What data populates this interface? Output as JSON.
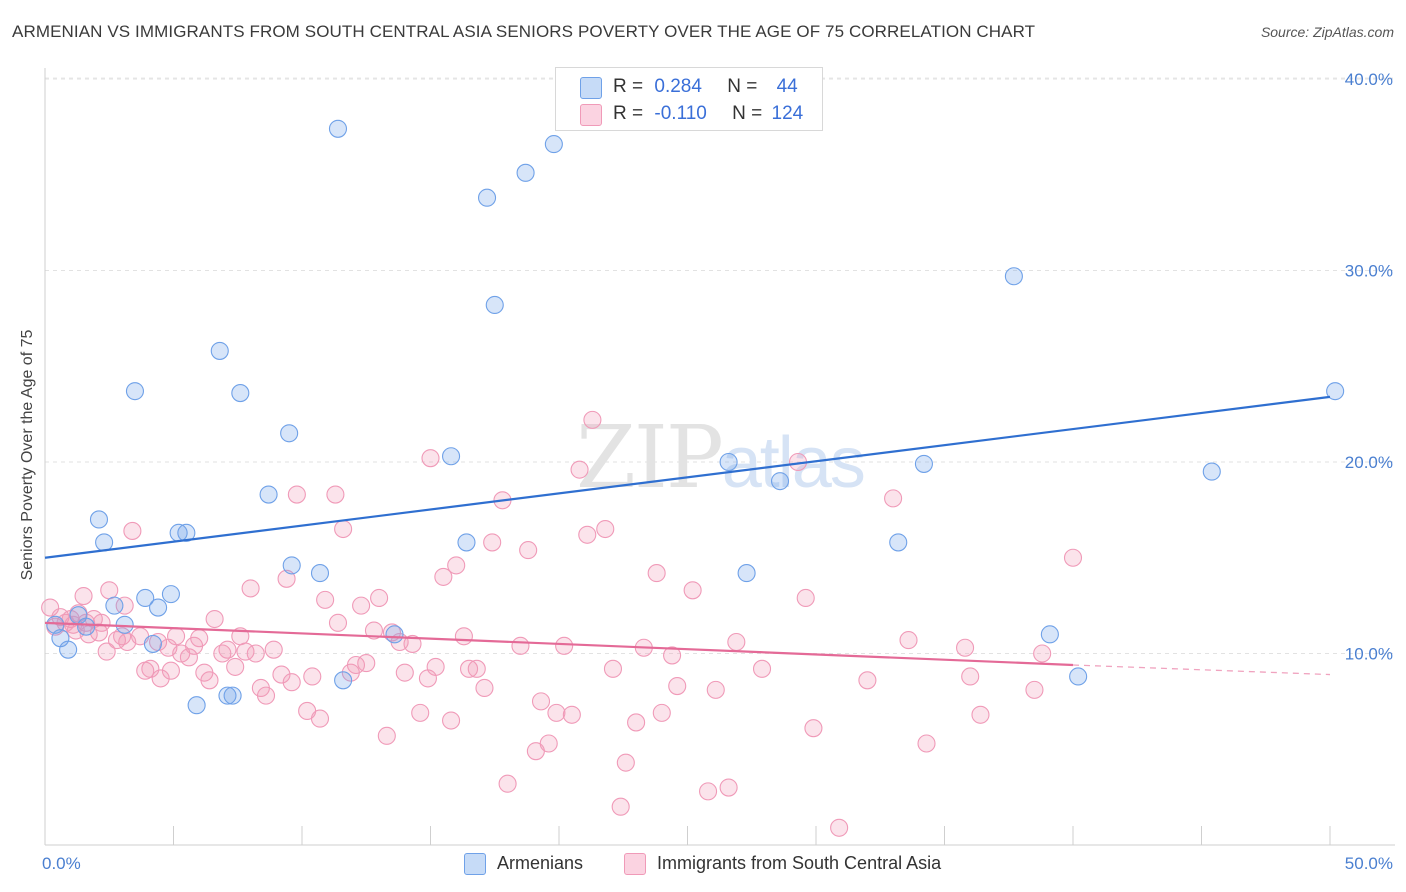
{
  "title": "ARMENIAN VS IMMIGRANTS FROM SOUTH CENTRAL ASIA SENIORS POVERTY OVER THE AGE OF 75 CORRELATION CHART",
  "source": "Source: ZipAtlas.com",
  "watermark": "ZIPatlas",
  "legend": {
    "rows": [
      {
        "r_label": "R =",
        "r_value": "0.284",
        "n_label": "N =",
        "n_value": "44",
        "color": "#6fa1e8"
      },
      {
        "r_label": "R =",
        "r_value": "-0.110",
        "n_label": "N =",
        "n_value": "124",
        "color": "#f09ab8"
      }
    ]
  },
  "bottom_legend": {
    "armenians": "Armenians",
    "immigrants": "Immigrants from South Central Asia"
  },
  "chart_data": {
    "type": "scatter",
    "title": "ARMENIAN VS IMMIGRANTS FROM SOUTH CENTRAL ASIA SENIORS POVERTY OVER THE AGE OF 75 CORRELATION CHART",
    "xlabel": "",
    "ylabel": "Seniors Poverty Over the Age of 75",
    "xlim": [
      0,
      50
    ],
    "ylim": [
      0,
      40
    ],
    "x_tick_labels": [
      "0.0%",
      "50.0%"
    ],
    "y_ticks": [
      10,
      20,
      30,
      40
    ],
    "y_tick_labels": [
      "10.0%",
      "20.0%",
      "30.0%",
      "40.0%"
    ],
    "grid": true,
    "legend_position": "top-center",
    "series": [
      {
        "name": "Armenians",
        "color": "#6fa1e8",
        "trend": {
          "x": [
            0,
            50
          ],
          "y": [
            15.0,
            23.4
          ]
        },
        "points": [
          [
            0.4,
            11.5
          ],
          [
            0.6,
            10.8
          ],
          [
            0.9,
            10.2
          ],
          [
            1.3,
            12.0
          ],
          [
            1.6,
            11.4
          ],
          [
            2.1,
            17.0
          ],
          [
            2.3,
            15.8
          ],
          [
            2.7,
            12.5
          ],
          [
            3.1,
            11.5
          ],
          [
            3.5,
            23.7
          ],
          [
            3.9,
            12.9
          ],
          [
            4.2,
            10.5
          ],
          [
            4.4,
            12.4
          ],
          [
            4.9,
            13.1
          ],
          [
            5.2,
            16.3
          ],
          [
            5.5,
            16.3
          ],
          [
            5.9,
            7.3
          ],
          [
            6.8,
            25.8
          ],
          [
            7.1,
            7.8
          ],
          [
            7.3,
            7.8
          ],
          [
            7.6,
            23.6
          ],
          [
            8.7,
            18.3
          ],
          [
            9.5,
            21.5
          ],
          [
            9.6,
            14.6
          ],
          [
            10.7,
            14.2
          ],
          [
            11.4,
            37.4
          ],
          [
            11.6,
            8.6
          ],
          [
            13.6,
            11.0
          ],
          [
            15.8,
            20.3
          ],
          [
            16.4,
            15.8
          ],
          [
            17.2,
            33.8
          ],
          [
            17.5,
            28.2
          ],
          [
            18.7,
            35.1
          ],
          [
            19.8,
            36.6
          ],
          [
            26.6,
            20.0
          ],
          [
            27.3,
            14.2
          ],
          [
            28.6,
            19.0
          ],
          [
            33.2,
            15.8
          ],
          [
            34.2,
            19.9
          ],
          [
            37.7,
            29.7
          ],
          [
            39.1,
            11.0
          ],
          [
            40.2,
            8.8
          ],
          [
            45.4,
            19.5
          ],
          [
            50.2,
            23.7
          ]
        ]
      },
      {
        "name": "Immigrants from South Central Asia",
        "color": "#f09ab8",
        "trend": {
          "x": [
            0,
            40
          ],
          "y": [
            11.6,
            9.4
          ]
        },
        "trend_dashed": {
          "x": [
            40,
            50
          ],
          "y": [
            9.4,
            8.9
          ]
        },
        "points": [
          [
            0.2,
            12.4
          ],
          [
            0.4,
            11.4
          ],
          [
            0.6,
            11.9
          ],
          [
            0.8,
            11.6
          ],
          [
            1.0,
            11.8
          ],
          [
            1.1,
            11.5
          ],
          [
            1.2,
            11.2
          ],
          [
            1.3,
            12.1
          ],
          [
            1.5,
            13.0
          ],
          [
            1.6,
            11.6
          ],
          [
            1.7,
            11.0
          ],
          [
            1.9,
            11.8
          ],
          [
            2.1,
            11.1
          ],
          [
            2.2,
            11.6
          ],
          [
            2.4,
            10.1
          ],
          [
            2.5,
            13.3
          ],
          [
            2.8,
            10.7
          ],
          [
            3.0,
            10.9
          ],
          [
            3.1,
            12.5
          ],
          [
            3.2,
            10.6
          ],
          [
            3.4,
            16.4
          ],
          [
            3.7,
            10.9
          ],
          [
            3.9,
            9.1
          ],
          [
            4.1,
            9.2
          ],
          [
            4.4,
            10.6
          ],
          [
            4.5,
            8.7
          ],
          [
            4.8,
            10.3
          ],
          [
            4.9,
            9.1
          ],
          [
            5.1,
            10.9
          ],
          [
            5.3,
            10.0
          ],
          [
            5.6,
            9.8
          ],
          [
            5.8,
            10.4
          ],
          [
            6.0,
            10.8
          ],
          [
            6.2,
            9.0
          ],
          [
            6.4,
            8.6
          ],
          [
            6.6,
            11.8
          ],
          [
            6.9,
            10.0
          ],
          [
            7.1,
            10.2
          ],
          [
            7.4,
            9.3
          ],
          [
            7.6,
            10.9
          ],
          [
            7.8,
            10.1
          ],
          [
            8.0,
            13.4
          ],
          [
            8.2,
            10.0
          ],
          [
            8.4,
            8.2
          ],
          [
            8.6,
            7.8
          ],
          [
            8.9,
            10.2
          ],
          [
            9.2,
            8.9
          ],
          [
            9.4,
            13.9
          ],
          [
            9.6,
            8.5
          ],
          [
            9.8,
            18.3
          ],
          [
            10.2,
            7.0
          ],
          [
            10.4,
            8.8
          ],
          [
            10.7,
            6.6
          ],
          [
            10.9,
            12.8
          ],
          [
            11.3,
            18.3
          ],
          [
            11.4,
            11.6
          ],
          [
            11.6,
            16.5
          ],
          [
            11.9,
            9.0
          ],
          [
            12.1,
            9.4
          ],
          [
            12.3,
            12.5
          ],
          [
            12.5,
            9.5
          ],
          [
            12.8,
            11.2
          ],
          [
            13.0,
            12.9
          ],
          [
            13.3,
            5.7
          ],
          [
            13.5,
            11.1
          ],
          [
            13.8,
            10.6
          ],
          [
            14.0,
            9.0
          ],
          [
            14.3,
            10.5
          ],
          [
            14.6,
            6.9
          ],
          [
            14.9,
            8.7
          ],
          [
            15.0,
            20.2
          ],
          [
            15.2,
            9.3
          ],
          [
            15.5,
            14.0
          ],
          [
            15.8,
            6.5
          ],
          [
            16.0,
            14.6
          ],
          [
            16.3,
            10.9
          ],
          [
            16.5,
            9.2
          ],
          [
            16.8,
            9.2
          ],
          [
            17.1,
            8.2
          ],
          [
            17.4,
            15.8
          ],
          [
            17.8,
            18.0
          ],
          [
            18.0,
            3.2
          ],
          [
            18.5,
            10.4
          ],
          [
            18.8,
            15.4
          ],
          [
            19.1,
            4.9
          ],
          [
            19.3,
            7.5
          ],
          [
            19.6,
            5.3
          ],
          [
            19.9,
            6.9
          ],
          [
            20.2,
            10.4
          ],
          [
            20.5,
            6.8
          ],
          [
            20.8,
            19.6
          ],
          [
            21.1,
            16.2
          ],
          [
            21.3,
            22.2
          ],
          [
            21.8,
            16.5
          ],
          [
            22.1,
            9.2
          ],
          [
            22.4,
            2.0
          ],
          [
            22.6,
            4.3
          ],
          [
            23.0,
            6.4
          ],
          [
            23.3,
            10.3
          ],
          [
            23.8,
            14.2
          ],
          [
            24.0,
            6.9
          ],
          [
            24.4,
            9.9
          ],
          [
            24.6,
            8.3
          ],
          [
            25.2,
            13.3
          ],
          [
            25.8,
            2.8
          ],
          [
            26.1,
            8.1
          ],
          [
            26.6,
            3.0
          ],
          [
            26.9,
            10.6
          ],
          [
            27.9,
            9.2
          ],
          [
            29.3,
            20.0
          ],
          [
            29.6,
            12.9
          ],
          [
            29.9,
            6.1
          ],
          [
            30.9,
            0.9
          ],
          [
            32.0,
            8.6
          ],
          [
            33.0,
            18.1
          ],
          [
            33.6,
            10.7
          ],
          [
            34.3,
            5.3
          ],
          [
            35.8,
            10.3
          ],
          [
            36.0,
            8.8
          ],
          [
            36.4,
            6.8
          ],
          [
            38.5,
            8.1
          ],
          [
            38.8,
            10.0
          ],
          [
            40.0,
            15.0
          ]
        ]
      }
    ]
  }
}
